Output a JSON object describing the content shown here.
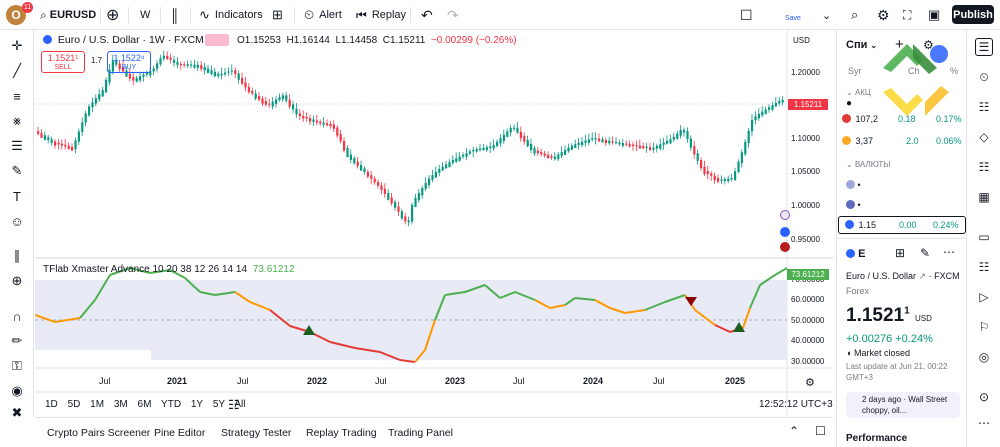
{
  "toolbar": {
    "avatar_letter": "O",
    "notification_count": "11",
    "symbol": "EURUSD",
    "interval": "W",
    "indicators_label": "Indicators",
    "alert_label": "Alert",
    "replay_label": "Replay",
    "save_label": "Save",
    "publish_label": "Publish"
  },
  "legend": {
    "title": "Euro / U.S. Dollar · 1W · FXCM",
    "ohlc_o": "O1.15253",
    "ohlc_h": "H1.16144",
    "ohlc_l": "L1.14458",
    "ohlc_c": "C1.15211",
    "change": "−0.00299 (−0.26%)",
    "sell_price": "1.1521¹",
    "sell_label": "SELL",
    "spread": "1.7",
    "buy_price": "1.1522⁸",
    "buy_label": "BUY",
    "currency": "USD"
  },
  "price_axis": {
    "ticks": [
      "1.20000",
      "1.15000",
      "1.10000",
      "1.05000",
      "1.00000",
      "0.95000"
    ],
    "last_price": "1.15211"
  },
  "indicator": {
    "label": "TFlab Xmaster Advance 10 20 38 12 26 14 14",
    "value": "73.61212",
    "ticks": [
      "70.00000",
      "60.00000",
      "50.00000",
      "40.00000",
      "30.00000"
    ]
  },
  "time_axis": {
    "labels": [
      "Jul",
      "2021",
      "Jul",
      "2022",
      "Jul",
      "2023",
      "Jul",
      "2024",
      "Jul",
      "2025"
    ]
  },
  "ranges": [
    "1D",
    "5D",
    "1M",
    "3M",
    "6M",
    "YTD",
    "1Y",
    "5Y",
    "All"
  ],
  "clock": "12:52:12 UTC+3",
  "bottom_tabs": [
    "Crypto Pairs Screener",
    "Pine Editor",
    "Strategy Tester",
    "Replay Trading",
    "Trading Panel"
  ],
  "watchlist": {
    "title": "Спи",
    "col_sym": "Syr",
    "col_ch": "Ch",
    "col_pct": "%",
    "section_stocks": "АКЦ",
    "section_fx": "ВАЛЮТЫ",
    "rows": [
      {
        "price": "107,2",
        "ch": "0.18",
        "pct": "0.17%",
        "color": "#089981"
      },
      {
        "price": "3,37",
        "ch": "2.0",
        "pct": "0.06%",
        "color": "#089981"
      },
      {
        "price": "1.15",
        "ch": "0.00",
        "pct": "0.24%",
        "color": "#089981"
      }
    ]
  },
  "details": {
    "short": "E",
    "name": "Euro / U.S. Dollar",
    "exchange": "FXCM",
    "type": "Forex",
    "price": "1.1521",
    "price_sup": "1",
    "price_cur": "USD",
    "change": "+0.00276 +0.24%",
    "status": "Market closed",
    "updated": "Last update at Jun 21, 00:22 GMT+3",
    "news": "2 days ago · Wall Street choppy, oil...",
    "performance": "Performance"
  },
  "colors": {
    "up": "#089981",
    "down": "#f23645",
    "indicator_green": "#4caf50",
    "indicator_orange": "#ff9800",
    "indicator_red": "#e53935",
    "band": "#e8eaf6"
  }
}
